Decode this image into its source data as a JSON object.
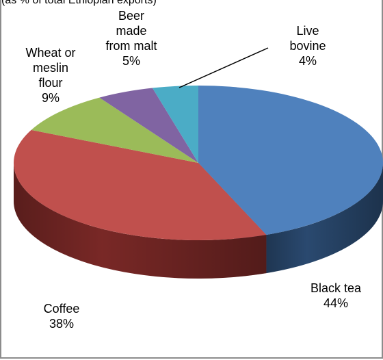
{
  "top_fragment": "(as % of total Ethiopian exports)",
  "chart_data": {
    "type": "pie",
    "title": "",
    "three_d": true,
    "start_angle_deg": 0,
    "direction": "clockwise",
    "slices": [
      {
        "name": "Black tea",
        "value": 44,
        "label_lines": [
          "Black tea",
          "44%"
        ],
        "color": "#4f81bd",
        "side_color": "#2c4d75"
      },
      {
        "name": "Coffee",
        "value": 38,
        "label_lines": [
          "Coffee",
          "38%"
        ],
        "color": "#c0504d",
        "side_color": "#7f2a28"
      },
      {
        "name": "Wheat or meslin flour",
        "value": 9,
        "label_lines": [
          "Wheat or",
          "meslin",
          "flour",
          "9%"
        ],
        "color": "#9bbb59",
        "side_color": "#5f7a2f"
      },
      {
        "name": "Beer made from malt",
        "value": 5,
        "label_lines": [
          "Beer",
          "made",
          "from malt",
          "5%"
        ],
        "color": "#8064a2",
        "side_color": "#4d3b64"
      },
      {
        "name": "Live bovine",
        "value": 4,
        "label_lines": [
          "Live",
          "bovine",
          "4%"
        ],
        "color": "#4bacc6",
        "side_color": "#2a6f82"
      }
    ]
  }
}
